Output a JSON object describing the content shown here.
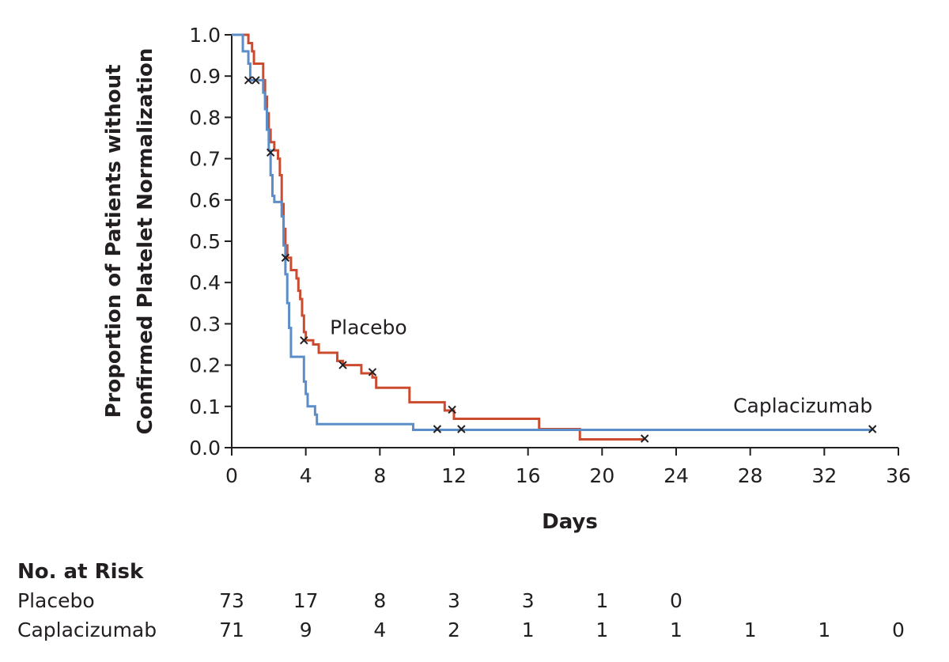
{
  "chart_data": {
    "type": "line",
    "title": "",
    "xlabel": "Days",
    "ylabel": [
      "Proportion of Patients without",
      "Confirmed Platelet Normalization"
    ],
    "xlim": [
      0,
      36
    ],
    "ylim": [
      0,
      1
    ],
    "xticks": [
      0,
      4,
      8,
      12,
      16,
      20,
      24,
      28,
      32,
      36
    ],
    "yticks": [
      "0.0",
      "0.1",
      "0.2",
      "0.3",
      "0.4",
      "0.5",
      "0.6",
      "0.7",
      "0.8",
      "0.9",
      "1.0"
    ],
    "series": [
      {
        "name": "Placebo",
        "color": "#cc4b2f",
        "steps": [
          [
            0,
            1.0
          ],
          [
            0.6,
            1.0
          ],
          [
            0.9,
            0.98
          ],
          [
            1.1,
            0.96
          ],
          [
            1.2,
            0.93
          ],
          [
            1.6,
            0.93
          ],
          [
            1.7,
            0.89
          ],
          [
            1.8,
            0.85
          ],
          [
            1.9,
            0.81
          ],
          [
            2.0,
            0.77
          ],
          [
            2.1,
            0.74
          ],
          [
            2.3,
            0.72
          ],
          [
            2.5,
            0.7
          ],
          [
            2.6,
            0.66
          ],
          [
            2.7,
            0.59
          ],
          [
            2.8,
            0.53
          ],
          [
            2.9,
            0.49
          ],
          [
            3.0,
            0.46
          ],
          [
            3.2,
            0.43
          ],
          [
            3.5,
            0.41
          ],
          [
            3.6,
            0.38
          ],
          [
            3.7,
            0.36
          ],
          [
            3.8,
            0.32
          ],
          [
            3.9,
            0.28
          ],
          [
            4.0,
            0.26
          ],
          [
            4.2,
            0.26
          ],
          [
            4.4,
            0.25
          ],
          [
            4.7,
            0.23
          ],
          [
            5.7,
            0.21
          ],
          [
            6.0,
            0.2
          ],
          [
            7.0,
            0.18
          ],
          [
            7.6,
            0.17
          ],
          [
            7.8,
            0.145
          ],
          [
            9.6,
            0.11
          ],
          [
            11.5,
            0.09
          ],
          [
            12.0,
            0.07
          ],
          [
            16.6,
            0.045
          ],
          [
            18.8,
            0.02
          ],
          [
            22.3,
            0.02
          ]
        ]
      },
      {
        "name": "Caplacizumab",
        "color": "#5b8ec9",
        "steps": [
          [
            0,
            1.0
          ],
          [
            0.6,
            0.96
          ],
          [
            0.9,
            0.93
          ],
          [
            1.0,
            0.89
          ],
          [
            1.5,
            0.89
          ],
          [
            1.7,
            0.86
          ],
          [
            1.8,
            0.82
          ],
          [
            1.9,
            0.77
          ],
          [
            2.0,
            0.72
          ],
          [
            2.1,
            0.66
          ],
          [
            2.2,
            0.61
          ],
          [
            2.3,
            0.595
          ],
          [
            2.7,
            0.56
          ],
          [
            2.8,
            0.49
          ],
          [
            2.9,
            0.42
          ],
          [
            3.0,
            0.35
          ],
          [
            3.1,
            0.29
          ],
          [
            3.2,
            0.22
          ],
          [
            3.9,
            0.16
          ],
          [
            4.0,
            0.13
          ],
          [
            4.1,
            0.1
          ],
          [
            4.5,
            0.08
          ],
          [
            4.6,
            0.057
          ],
          [
            9.8,
            0.043
          ],
          [
            34.6,
            0.043
          ]
        ]
      }
    ],
    "censor_marks": [
      {
        "series": "Placebo",
        "x": 1.3,
        "y": 0.89
      },
      {
        "series": "Placebo",
        "x": 2.1,
        "y": 0.715
      },
      {
        "series": "Placebo",
        "x": 2.9,
        "y": 0.46
      },
      {
        "series": "Placebo",
        "x": 3.9,
        "y": 0.26
      },
      {
        "series": "Placebo",
        "x": 6.0,
        "y": 0.2
      },
      {
        "series": "Placebo",
        "x": 7.6,
        "y": 0.183
      },
      {
        "series": "Placebo",
        "x": 11.9,
        "y": 0.092
      },
      {
        "series": "Placebo",
        "x": 22.3,
        "y": 0.022
      },
      {
        "series": "Caplacizumab",
        "x": 0.9,
        "y": 0.89
      },
      {
        "series": "Caplacizumab",
        "x": 11.1,
        "y": 0.045
      },
      {
        "series": "Caplacizumab",
        "x": 12.4,
        "y": 0.045
      },
      {
        "series": "Caplacizumab",
        "x": 34.6,
        "y": 0.045
      }
    ],
    "series_labels": [
      {
        "text": "Placebo",
        "anchor": "start",
        "x": 5.3,
        "y": 0.275
      },
      {
        "text": "Caplacizumab",
        "anchor": "end",
        "x": 34.6,
        "y": 0.085
      }
    ]
  },
  "risk_table": {
    "title": "No. at Risk",
    "rows": [
      {
        "label": "Placebo",
        "values": [
          "73",
          "17",
          "8",
          "3",
          "3",
          "1",
          "0",
          "",
          "",
          ""
        ]
      },
      {
        "label": "Caplacizumab",
        "values": [
          "71",
          "9",
          "4",
          "2",
          "1",
          "1",
          "1",
          "1",
          "1",
          "0"
        ]
      }
    ]
  }
}
